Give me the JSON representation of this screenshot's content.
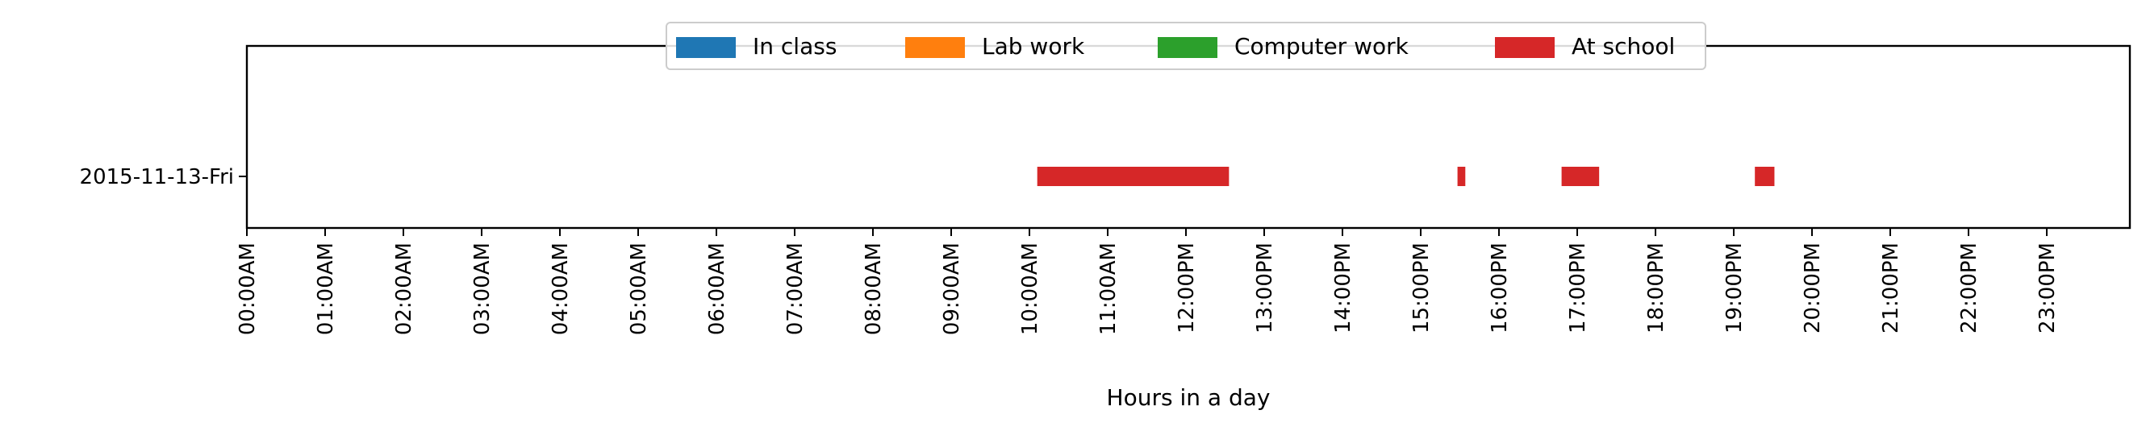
{
  "chart_data": {
    "type": "timeline",
    "xlabel": "Hours in a day",
    "ylabel": "",
    "xlim": [
      0,
      24
    ],
    "x_ticks": [
      0,
      1,
      2,
      3,
      4,
      5,
      6,
      7,
      8,
      9,
      10,
      11,
      12,
      13,
      14,
      15,
      16,
      17,
      18,
      19,
      20,
      21,
      22,
      23
    ],
    "x_tick_labels": [
      "00:00AM",
      "01:00AM",
      "02:00AM",
      "03:00AM",
      "04:00AM",
      "05:00AM",
      "06:00AM",
      "07:00AM",
      "08:00AM",
      "09:00AM",
      "10:00AM",
      "11:00AM",
      "12:00PM",
      "13:00PM",
      "14:00PM",
      "15:00PM",
      "16:00PM",
      "17:00PM",
      "18:00PM",
      "19:00PM",
      "20:00PM",
      "21:00PM",
      "22:00PM",
      "23:00PM"
    ],
    "categories": [
      "2015-11-13-Fri"
    ],
    "legend_position": "top-center",
    "series": [
      {
        "name": "In class",
        "color": "#1f77b4",
        "intervals": []
      },
      {
        "name": "Lab work",
        "color": "#ff7f0e",
        "intervals": []
      },
      {
        "name": "Computer work",
        "color": "#2ca02c",
        "intervals": []
      },
      {
        "name": "At school",
        "color": "#d62728",
        "intervals": [
          {
            "category": "2015-11-13-Fri",
            "start": 10.1,
            "end": 12.55
          },
          {
            "category": "2015-11-13-Fri",
            "start": 15.47,
            "end": 15.57
          },
          {
            "category": "2015-11-13-Fri",
            "start": 16.8,
            "end": 17.28
          },
          {
            "category": "2015-11-13-Fri",
            "start": 19.27,
            "end": 19.52
          }
        ]
      }
    ]
  }
}
